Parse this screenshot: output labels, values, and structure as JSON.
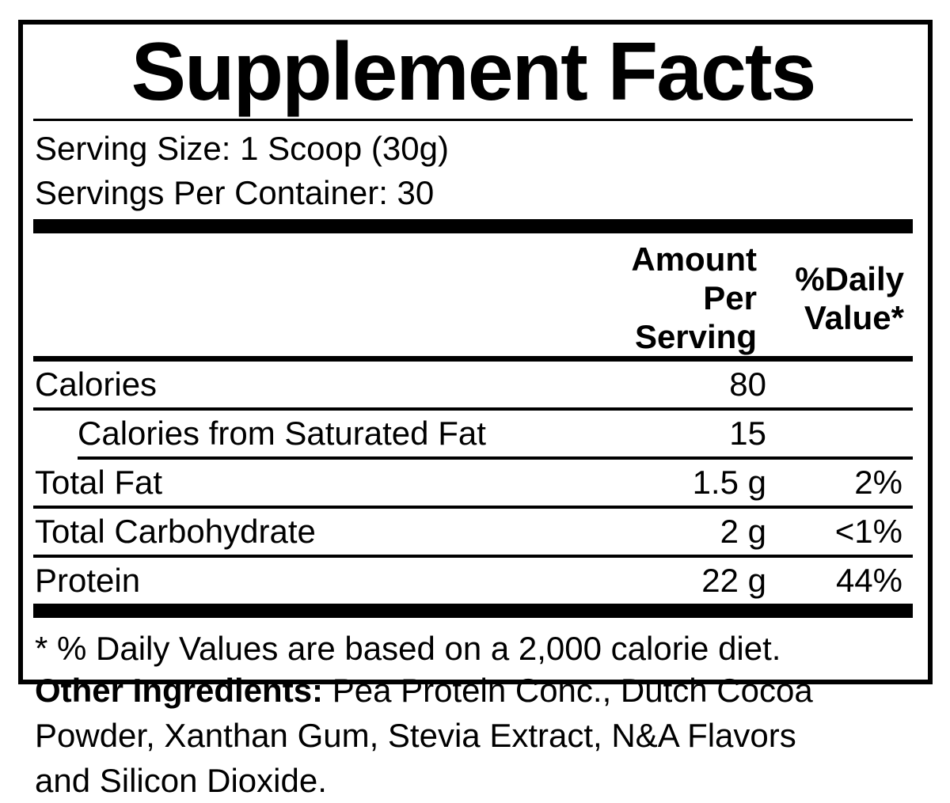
{
  "colors": {
    "text": "#000000",
    "background": "#ffffff"
  },
  "label": {
    "title": "Supplement Facts",
    "serving": {
      "size": "Serving Size: 1 Scoop (30g)",
      "per_container": "Servings Per Container: 30"
    },
    "header": {
      "amount_line1": "Amount Per",
      "amount_line2": "Serving",
      "dv_line1": "%Daily",
      "dv_line2": "Value*"
    },
    "rows": [
      {
        "name": "Calories",
        "amount": "80",
        "dv": ""
      },
      {
        "name": "Calories from Saturated Fat",
        "amount": "15",
        "dv": ""
      },
      {
        "name": "Total Fat",
        "amount": "1.5 g",
        "dv": "2%"
      },
      {
        "name": "Total Carbohydrate",
        "amount": "2 g",
        "dv": "<1%"
      },
      {
        "name": "Protein",
        "amount": "22 g",
        "dv": "44%"
      }
    ],
    "footnote": "* % Daily Values are based on a 2,000 calorie diet."
  },
  "other_ingredients": {
    "label": "Other Ingredients:",
    "line1_rest": " Pea Protein Conc., Dutch Cocoa",
    "line2": "Powder, Xanthan Gum, Stevia Extract, N&A Flavors",
    "line3": "and Silicon Dioxide."
  }
}
